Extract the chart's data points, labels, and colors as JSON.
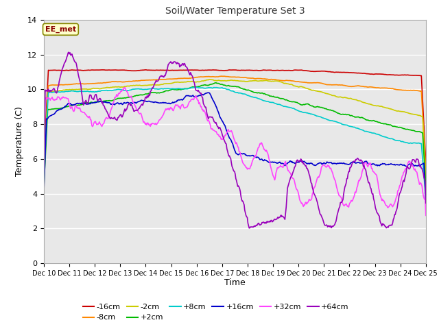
{
  "title": "Soil/Water Temperature Set 3",
  "xlabel": "Time",
  "ylabel": "Temperature (C)",
  "ylim": [
    0,
    14
  ],
  "yticks": [
    0,
    2,
    4,
    6,
    8,
    10,
    12,
    14
  ],
  "annotation_label": "EE_met",
  "fig_bg": "#ffffff",
  "plot_bg": "#e8e8e8",
  "grid_color": "#ffffff",
  "series_colors": {
    "-16cm": "#cc0000",
    "-8cm": "#ff8800",
    "-2cm": "#cccc00",
    "+2cm": "#00bb00",
    "+8cm": "#00cccc",
    "+16cm": "#0000cc",
    "+32cm": "#ff44ff",
    "+64cm": "#9900bb"
  },
  "legend_order": [
    "-16cm",
    "-8cm",
    "-2cm",
    "+2cm",
    "+8cm",
    "+16cm",
    "+32cm",
    "+64cm"
  ]
}
